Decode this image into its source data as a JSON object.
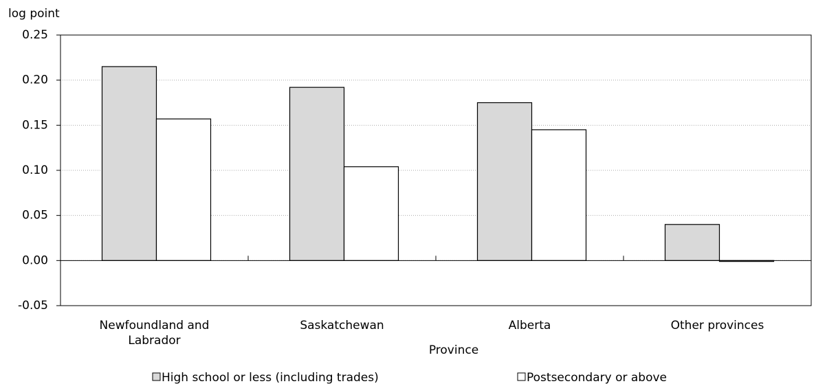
{
  "chart_data": {
    "type": "bar",
    "y_label": "log point",
    "x_label": "Province",
    "categories": [
      "Newfoundland and Labrador",
      "Saskatchewan",
      "Alberta",
      "Other provinces"
    ],
    "series": [
      {
        "name": "High school or less (including trades)",
        "color": "#d9d9d9",
        "values": [
          0.215,
          0.192,
          0.175,
          0.04
        ]
      },
      {
        "name": "Postsecondary or above",
        "color": "#ffffff",
        "values": [
          0.157,
          0.104,
          0.145,
          -0.001
        ]
      }
    ],
    "ylim": [
      -0.05,
      0.25
    ],
    "yticks": [
      -0.05,
      {
        "value": 0,
        "label": "0.00"
      },
      0.05,
      {
        "value": 0.1,
        "label": "0.10"
      },
      0.15,
      {
        "value": 0.2,
        "label": "0.20"
      },
      0.25
    ],
    "grid": true
  }
}
